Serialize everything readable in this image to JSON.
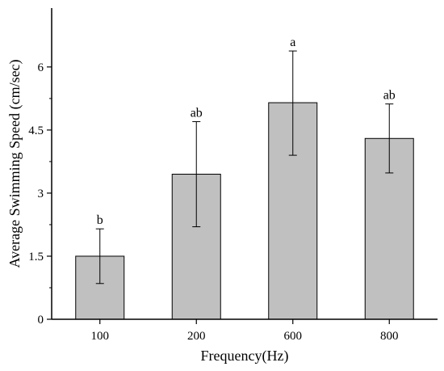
{
  "chart_data": {
    "type": "bar",
    "xlabel": "Frequency(Hz)",
    "ylabel": "Average Swimming Speed (cm/sec)",
    "categories": [
      "100",
      "200",
      "600",
      "800"
    ],
    "values": [
      1.5,
      3.45,
      5.15,
      4.3
    ],
    "error_low": [
      0.85,
      2.2,
      3.9,
      3.48
    ],
    "error_high": [
      2.15,
      4.7,
      6.38,
      5.12
    ],
    "significance": [
      "b",
      "ab",
      "a",
      "ab"
    ],
    "ylim": [
      0,
      7.4
    ],
    "yticks": [
      0,
      1.5,
      3,
      4.5,
      6
    ],
    "ytick_labels": [
      "0",
      "1.5",
      "3",
      "4.5",
      "6"
    ],
    "grid": false,
    "colors": {
      "bar": "#c0c0c0",
      "bar_edge": "#000000",
      "axis": "#000000"
    }
  }
}
